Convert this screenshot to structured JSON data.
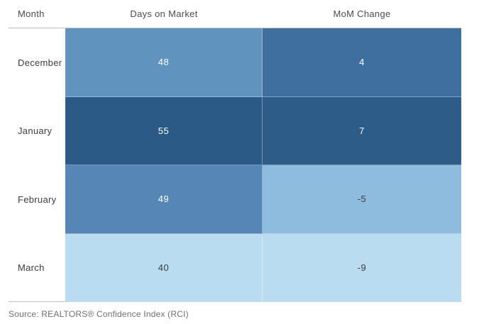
{
  "table": {
    "columns": [
      "Month",
      "Days on Market",
      "MoM Change"
    ],
    "rows": [
      {
        "month": "December",
        "days_on_market": "48",
        "mom_change": "4",
        "dom_color": "#6093bd",
        "mom_color": "#3e6f9f",
        "dom_text_color": "#ffffff",
        "mom_text_color": "#ffffff"
      },
      {
        "month": "January",
        "days_on_market": "55",
        "mom_change": "7",
        "dom_color": "#2b5a87",
        "mom_color": "#2d5c89",
        "dom_text_color": "#ffffff",
        "mom_text_color": "#ffffff"
      },
      {
        "month": "February",
        "days_on_market": "49",
        "mom_change": "-5",
        "dom_color": "#5586b5",
        "mom_color": "#8ebcde",
        "dom_text_color": "#ffffff",
        "mom_text_color": "#3c3c3c"
      },
      {
        "month": "March",
        "days_on_market": "40",
        "mom_change": "-9",
        "dom_color": "#b9dcf0",
        "mom_color": "#b9dcf0",
        "dom_text_color": "#3c3c3c",
        "mom_text_color": "#3c3c3c"
      }
    ]
  },
  "source_note": "Source: REALTORS® Confidence Index (RCI)",
  "colors": {
    "scale_darkest": "#2b5a87",
    "scale_dark": "#3e6f9f",
    "scale_medium": "#5586b5",
    "scale_medium_light": "#6093bd",
    "scale_light": "#8ebcde",
    "scale_lightest": "#b9dcf0",
    "header_divider": "#bdbdbd",
    "text_on_dark": "#ffffff",
    "text_on_light": "#3c3c3c"
  },
  "chart_data": {
    "type": "heatmap",
    "categories": [
      "December",
      "January",
      "February",
      "March"
    ],
    "series": [
      {
        "name": "Days on Market",
        "values": [
          48,
          55,
          49,
          40
        ]
      },
      {
        "name": "MoM Change",
        "values": [
          4,
          7,
          -5,
          -9
        ]
      }
    ],
    "title": "",
    "xlabel": "Month",
    "ylabel": "",
    "legend": "none",
    "grid": false,
    "source": "Source: REALTORS® Confidence Index (RCI)",
    "color_mapping": "higher value = darker blue, per column scale"
  }
}
